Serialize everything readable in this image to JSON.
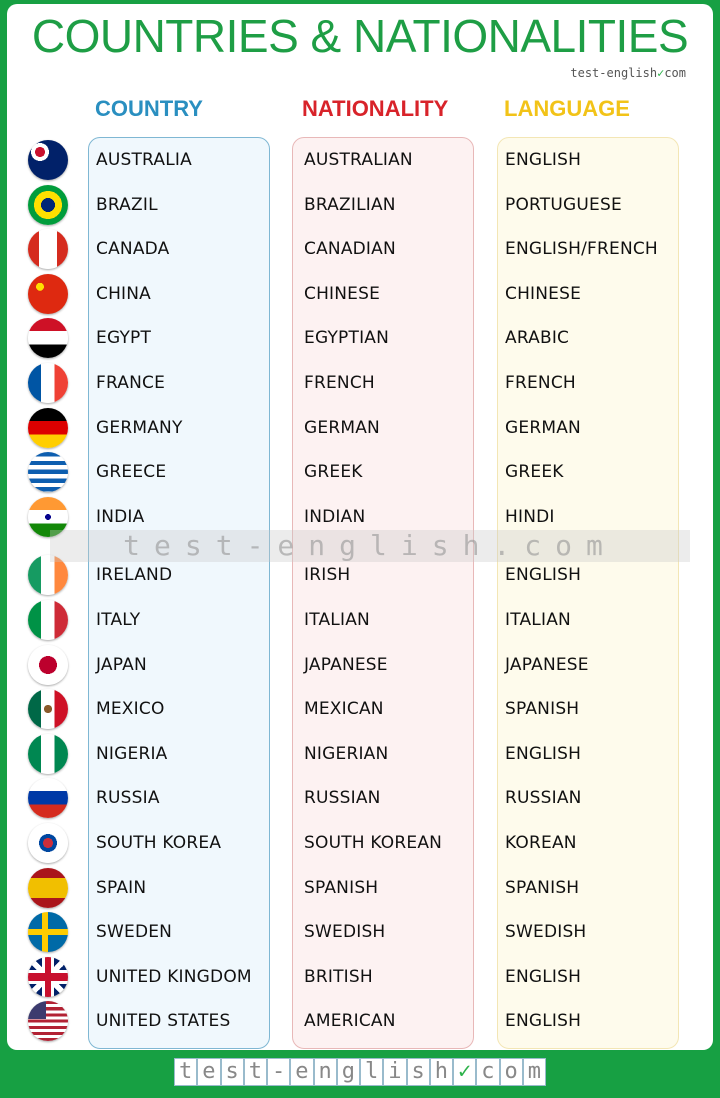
{
  "title": "COUNTRIES & NATIONALITIES",
  "brand": "test-english",
  "brand_suffix": "com",
  "headers": {
    "country": "COUNTRY",
    "nationality": "NATIONALITY",
    "language": "LANGUAGE"
  },
  "colors": {
    "frame": "#17a043",
    "title": "#1e9e45",
    "country": "#2a8fc0",
    "nationality": "#d8232a",
    "language": "#f2c318",
    "country_box": "#f0f8fd",
    "nationality_box": "#fdf2f2",
    "language_box": "#fefbec"
  },
  "watermark": "test-english.com",
  "footer": [
    "t",
    "e",
    "s",
    "t",
    "-",
    "e",
    "n",
    "g",
    "l",
    "i",
    "s",
    "h",
    "✓",
    "c",
    "o",
    "m"
  ],
  "rows": [
    {
      "flag": "australia-flag-icon",
      "country": "AUSTRALIA",
      "nationality": "AUSTRALIAN",
      "language": "ENGLISH"
    },
    {
      "flag": "brazil-flag-icon",
      "country": "BRAZIL",
      "nationality": "BRAZILIAN",
      "language": "PORTUGUESE"
    },
    {
      "flag": "canada-flag-icon",
      "country": "CANADA",
      "nationality": "CANADIAN",
      "language": "ENGLISH/FRENCH"
    },
    {
      "flag": "china-flag-icon",
      "country": "CHINA",
      "nationality": "CHINESE",
      "language": "CHINESE"
    },
    {
      "flag": "egypt-flag-icon",
      "country": "EGYPT",
      "nationality": "EGYPTIAN",
      "language": "ARABIC"
    },
    {
      "flag": "france-flag-icon",
      "country": "FRANCE",
      "nationality": "FRENCH",
      "language": "FRENCH"
    },
    {
      "flag": "germany-flag-icon",
      "country": "GERMANY",
      "nationality": "GERMAN",
      "language": "GERMAN"
    },
    {
      "flag": "greece-flag-icon",
      "country": "GREECE",
      "nationality": "GREEK",
      "language": "GREEK"
    },
    {
      "flag": "india-flag-icon",
      "country": "INDIA",
      "nationality": "INDIAN",
      "language": "HINDI"
    },
    {
      "flag": "ireland-flag-icon",
      "country": "IRELAND",
      "nationality": "IRISH",
      "language": "ENGLISH"
    },
    {
      "flag": "italy-flag-icon",
      "country": "ITALY",
      "nationality": "ITALIAN",
      "language": "ITALIAN"
    },
    {
      "flag": "japan-flag-icon",
      "country": "JAPAN",
      "nationality": "JAPANESE",
      "language": "JAPANESE"
    },
    {
      "flag": "mexico-flag-icon",
      "country": "MEXICO",
      "nationality": "MEXICAN",
      "language": "SPANISH"
    },
    {
      "flag": "nigeria-flag-icon",
      "country": "NIGERIA",
      "nationality": "NIGERIAN",
      "language": "ENGLISH"
    },
    {
      "flag": "russia-flag-icon",
      "country": "RUSSIA",
      "nationality": "RUSSIAN",
      "language": "RUSSIAN"
    },
    {
      "flag": "south-korea-flag-icon",
      "country": "SOUTH KOREA",
      "nationality": "SOUTH KOREAN",
      "language": "KOREAN"
    },
    {
      "flag": "spain-flag-icon",
      "country": "SPAIN",
      "nationality": "SPANISH",
      "language": "SPANISH"
    },
    {
      "flag": "sweden-flag-icon",
      "country": "SWEDEN",
      "nationality": "SWEDISH",
      "language": "SWEDISH"
    },
    {
      "flag": "uk-flag-icon",
      "country": "UNITED KINGDOM",
      "nationality": "BRITISH",
      "language": "ENGLISH"
    },
    {
      "flag": "usa-flag-icon",
      "country": "UNITED STATES",
      "nationality": "AMERICAN",
      "language": "ENGLISH"
    }
  ]
}
